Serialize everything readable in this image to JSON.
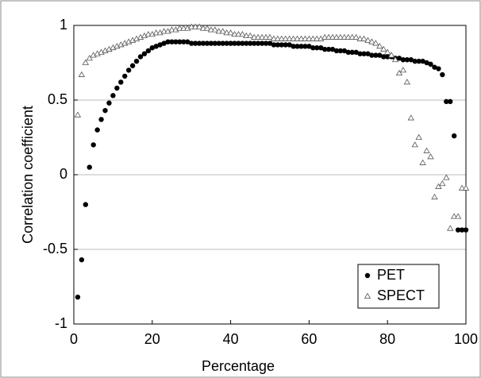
{
  "chart_data": {
    "type": "scatter",
    "xlabel": "Percentage",
    "ylabel": "Correlation coefficient",
    "x": [
      1,
      2,
      3,
      4,
      5,
      6,
      7,
      8,
      9,
      10,
      11,
      12,
      13,
      14,
      15,
      16,
      17,
      18,
      19,
      20,
      21,
      22,
      23,
      24,
      25,
      26,
      27,
      28,
      29,
      30,
      31,
      32,
      33,
      34,
      35,
      36,
      37,
      38,
      39,
      40,
      41,
      42,
      43,
      44,
      45,
      46,
      47,
      48,
      49,
      50,
      51,
      52,
      53,
      54,
      55,
      56,
      57,
      58,
      59,
      60,
      61,
      62,
      63,
      64,
      65,
      66,
      67,
      68,
      69,
      70,
      71,
      72,
      73,
      74,
      75,
      76,
      77,
      78,
      79,
      80,
      81,
      82,
      83,
      84,
      85,
      86,
      87,
      88,
      89,
      90,
      91,
      92,
      93,
      94,
      95,
      96,
      97,
      98,
      99,
      100
    ],
    "series": [
      {
        "name": "PET",
        "color": "#000000",
        "marker": "circle",
        "values": [
          -0.82,
          -0.57,
          -0.2,
          0.05,
          0.2,
          0.3,
          0.37,
          0.43,
          0.48,
          0.53,
          0.58,
          0.62,
          0.66,
          0.7,
          0.73,
          0.76,
          0.79,
          0.81,
          0.83,
          0.85,
          0.86,
          0.87,
          0.88,
          0.89,
          0.89,
          0.89,
          0.89,
          0.89,
          0.89,
          0.88,
          0.88,
          0.88,
          0.88,
          0.88,
          0.88,
          0.88,
          0.88,
          0.88,
          0.88,
          0.88,
          0.88,
          0.88,
          0.88,
          0.88,
          0.88,
          0.88,
          0.88,
          0.88,
          0.88,
          0.88,
          0.87,
          0.87,
          0.87,
          0.87,
          0.87,
          0.86,
          0.86,
          0.86,
          0.86,
          0.86,
          0.85,
          0.85,
          0.85,
          0.84,
          0.84,
          0.84,
          0.83,
          0.83,
          0.83,
          0.82,
          0.82,
          0.82,
          0.81,
          0.81,
          0.81,
          0.8,
          0.8,
          0.8,
          0.79,
          0.79,
          0.79,
          0.78,
          0.78,
          0.77,
          0.77,
          0.77,
          0.76,
          0.76,
          0.76,
          0.75,
          0.74,
          0.72,
          0.71,
          0.67,
          0.49,
          0.49,
          0.26,
          -0.37,
          -0.37,
          -0.37
        ]
      },
      {
        "name": "SPECT",
        "color": "#555555",
        "marker": "triangle",
        "values": [
          0.4,
          0.67,
          0.75,
          0.78,
          0.8,
          0.81,
          0.82,
          0.83,
          0.84,
          0.85,
          0.86,
          0.87,
          0.88,
          0.89,
          0.9,
          0.91,
          0.92,
          0.93,
          0.94,
          0.94,
          0.95,
          0.95,
          0.96,
          0.96,
          0.97,
          0.97,
          0.98,
          0.98,
          0.98,
          0.99,
          0.99,
          0.99,
          0.98,
          0.98,
          0.97,
          0.97,
          0.96,
          0.96,
          0.95,
          0.95,
          0.94,
          0.94,
          0.94,
          0.93,
          0.93,
          0.92,
          0.92,
          0.92,
          0.92,
          0.92,
          0.91,
          0.91,
          0.91,
          0.91,
          0.91,
          0.91,
          0.91,
          0.91,
          0.91,
          0.91,
          0.91,
          0.91,
          0.91,
          0.92,
          0.92,
          0.92,
          0.92,
          0.92,
          0.92,
          0.92,
          0.92,
          0.92,
          0.91,
          0.91,
          0.9,
          0.89,
          0.88,
          0.86,
          0.84,
          0.82,
          0.8,
          0.77,
          0.68,
          0.7,
          0.62,
          0.38,
          0.2,
          0.25,
          0.08,
          0.16,
          0.12,
          -0.15,
          -0.08,
          -0.06,
          -0.02,
          -0.36,
          -0.28,
          -0.28,
          -0.09,
          -0.09
        ]
      }
    ],
    "xlim": [
      0,
      100
    ],
    "xticks": [
      0,
      20,
      40,
      60,
      80,
      100
    ],
    "ylim": [
      -1,
      1
    ],
    "yticks": [
      -1,
      -0.5,
      0,
      0.5,
      1
    ],
    "grid": true,
    "legend": "lower right"
  }
}
